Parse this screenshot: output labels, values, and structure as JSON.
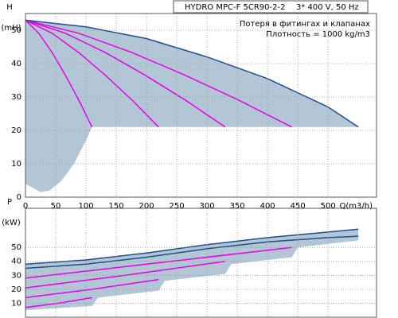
{
  "chart_data": [
    {
      "type": "line",
      "title": "HYDRO MPC-F 5CR90-2-2",
      "subtitle": "3* 400 V, 50 Hz",
      "annotations": [
        "Потеря в фитингах и клапанах",
        "Плотность = 1000 kg/m3"
      ],
      "y_label": "H",
      "y_unit": "(mH)",
      "x_label": "Q(m3/h)",
      "xlim": [
        0,
        580
      ],
      "xticks": [
        0,
        50,
        100,
        150,
        200,
        250,
        300,
        350,
        400,
        450,
        500
      ],
      "ylim": [
        0,
        55
      ],
      "yticks": [
        0,
        10,
        20,
        30,
        40,
        50
      ],
      "grid": true,
      "series": [
        {
          "kind": "area",
          "color": "#b3c6d6",
          "x": [
            0,
            100,
            200,
            300,
            400,
            500,
            550,
            110,
            100,
            80,
            60,
            40,
            25,
            10,
            0
          ],
          "values": [
            53,
            51,
            47.5,
            42,
            35.5,
            27,
            21,
            21,
            17,
            10,
            5,
            2,
            1.5,
            3,
            4
          ]
        },
        {
          "kind": "line",
          "color": "#e600e6",
          "x": [
            0,
            22,
            44,
            66,
            88,
            110
          ],
          "values": [
            53,
            49.1,
            43.3,
            36.5,
            29.1,
            21
          ]
        },
        {
          "kind": "line",
          "color": "#e600e6",
          "x": [
            0,
            44,
            88,
            132,
            176,
            220
          ],
          "values": [
            53,
            49.1,
            43.3,
            36.5,
            29.1,
            21
          ]
        },
        {
          "kind": "line",
          "color": "#e600e6",
          "x": [
            0,
            66,
            132,
            198,
            264,
            330
          ],
          "values": [
            53,
            49.1,
            43.3,
            36.5,
            29.1,
            21
          ]
        },
        {
          "kind": "line",
          "color": "#e600e6",
          "x": [
            0,
            88,
            176,
            264,
            352,
            440
          ],
          "values": [
            53,
            49.1,
            43.3,
            36.5,
            29.1,
            21
          ]
        },
        {
          "kind": "line",
          "color": "#1f4e8c",
          "x": [
            0,
            100,
            200,
            300,
            400,
            500,
            550
          ],
          "values": [
            53,
            51,
            47.5,
            42,
            35.5,
            27,
            21
          ]
        }
      ]
    },
    {
      "type": "line",
      "y_label": "P",
      "y_unit": "(kW)",
      "xlim": [
        0,
        580
      ],
      "ylim": [
        0,
        78
      ],
      "yticks": [
        10,
        20,
        30,
        40,
        50
      ],
      "grid": true,
      "series": [
        {
          "kind": "area",
          "color": "#b3c6d6",
          "x": [
            0,
            100,
            200,
            300,
            400,
            500,
            550,
            550,
            450,
            440,
            340,
            330,
            230,
            220,
            120,
            110,
            0
          ],
          "values": [
            38,
            41,
            46,
            52,
            57,
            61,
            63,
            55,
            50,
            43,
            38,
            31,
            26,
            19,
            14,
            8,
            5
          ]
        },
        {
          "kind": "line",
          "color": "#e600e6",
          "x": [
            0,
            55,
            110
          ],
          "values": [
            7,
            10,
            14
          ]
        },
        {
          "kind": "line",
          "color": "#e600e6",
          "x": [
            0,
            110,
            220
          ],
          "values": [
            14,
            20,
            27
          ]
        },
        {
          "kind": "line",
          "color": "#e600e6",
          "x": [
            0,
            165,
            330
          ],
          "values": [
            21,
            30,
            40
          ]
        },
        {
          "kind": "line",
          "color": "#e600e6",
          "x": [
            0,
            220,
            440
          ],
          "values": [
            28,
            39,
            50
          ]
        },
        {
          "kind": "line",
          "color": "#1f4e8c",
          "x": [
            0,
            100,
            200,
            300,
            400,
            500,
            550
          ],
          "values": [
            35,
            38,
            43,
            49,
            54,
            57,
            58
          ]
        },
        {
          "kind": "line",
          "color": "#1f4e8c",
          "x": [
            0,
            100,
            200,
            300,
            400,
            500,
            550
          ],
          "values": [
            38,
            41,
            46,
            52,
            57,
            61,
            63
          ]
        }
      ]
    }
  ]
}
